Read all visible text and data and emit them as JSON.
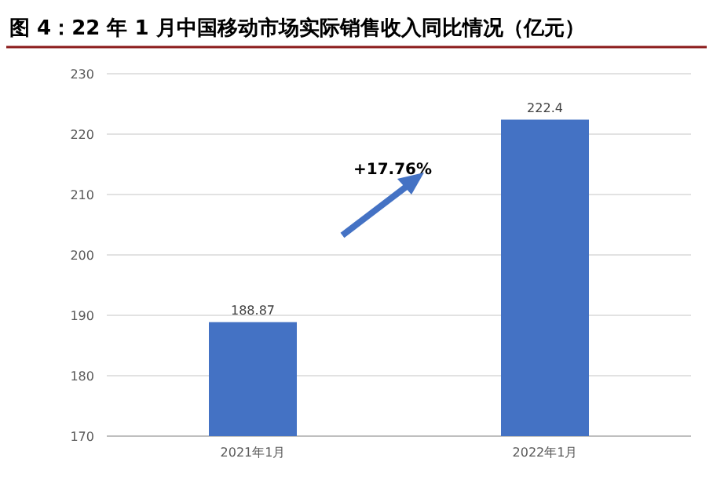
{
  "chart_data": {
    "type": "bar",
    "title": "图 4：22 年 1 月中国移动市场实际销售收入同比情况（亿元）",
    "categories": [
      "2021年1月",
      "2022年1月"
    ],
    "values": [
      188.87,
      222.4
    ],
    "color": "#4472c4",
    "ylim": [
      170,
      230
    ],
    "yticks": [
      170,
      180,
      190,
      200,
      210,
      220,
      230
    ],
    "grid": "y",
    "data_labels": true,
    "annotations": [
      "+17.76%"
    ]
  }
}
